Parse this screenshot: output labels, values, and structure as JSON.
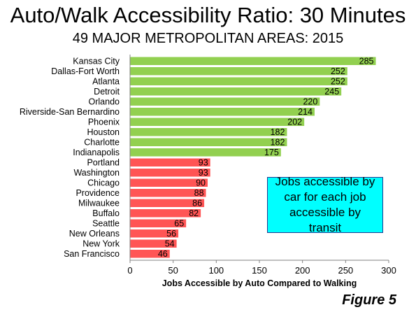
{
  "title": "Auto/Walk Accessibility Ratio: 30 Minutes",
  "subtitle": "49 MAJOR METROPOLITAN AREAS: 2015",
  "callout": "Jobs accessible by car for each job accessible by transit",
  "figure_label": "Figure 5",
  "colors": {
    "top_group": "#92d050",
    "bottom_group": "#ff5555",
    "callout_bg": "#00ffff",
    "callout_border": "#1f3a93"
  },
  "chart_data": {
    "type": "bar",
    "orientation": "horizontal",
    "title": "Auto/Walk Accessibility Ratio: 30 Minutes",
    "subtitle": "49 MAJOR METROPOLITAN AREAS: 2015",
    "xlabel": "Jobs Accessible by Auto Compared to Walking",
    "ylabel": "",
    "xlim": [
      0,
      300
    ],
    "xticks": [
      0,
      50,
      100,
      150,
      200,
      250,
      300
    ],
    "grid": false,
    "categories": [
      "Kansas City",
      "Dallas-Fort Worth",
      "Atlanta",
      "Detroit",
      "Orlando",
      "Riverside-San Bernardino",
      "Phoenix",
      "Houston",
      "Charlotte",
      "Indianapolis",
      "Portland",
      "Washington",
      "Chicago",
      "Providence",
      "Milwaukee",
      "Buffalo",
      "Seattle",
      "New Orleans",
      "New York",
      "San Francisco"
    ],
    "values": [
      285,
      252,
      252,
      245,
      220,
      214,
      202,
      182,
      182,
      175,
      93,
      93,
      90,
      88,
      86,
      82,
      65,
      56,
      54,
      46
    ],
    "groups": [
      "top",
      "top",
      "top",
      "top",
      "top",
      "top",
      "top",
      "top",
      "top",
      "top",
      "bottom",
      "bottom",
      "bottom",
      "bottom",
      "bottom",
      "bottom",
      "bottom",
      "bottom",
      "bottom",
      "bottom"
    ]
  }
}
